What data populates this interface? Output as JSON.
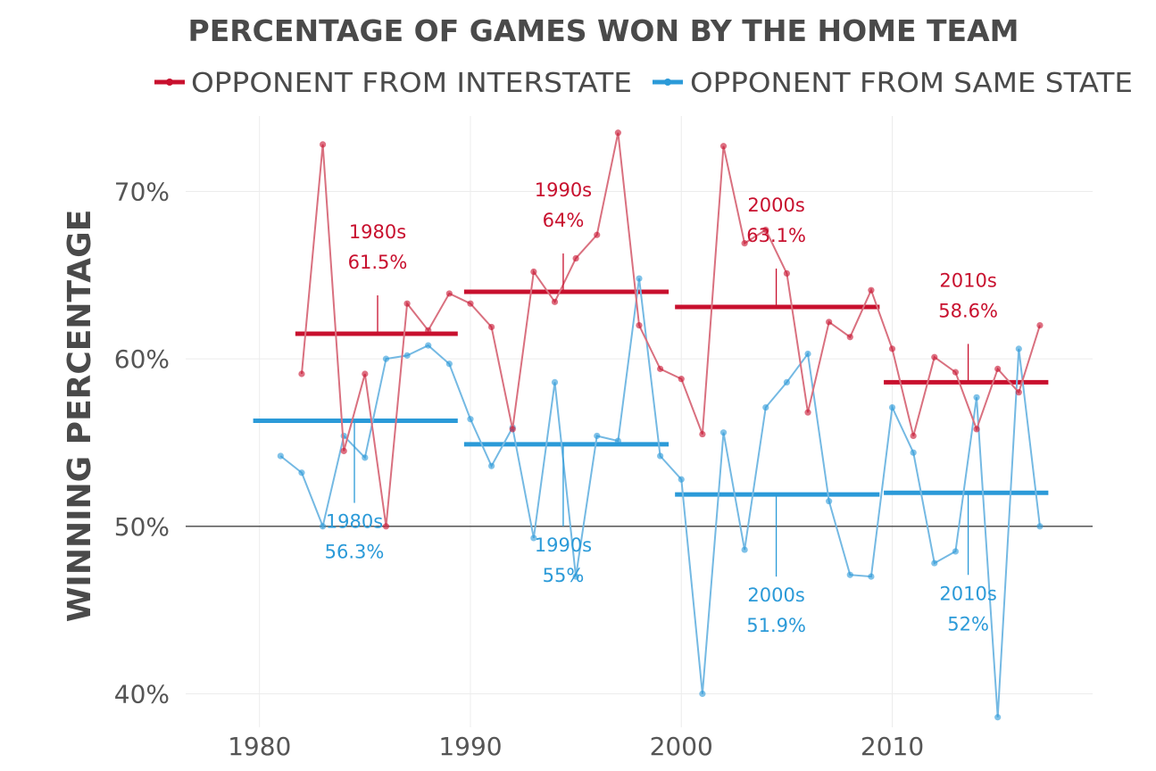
{
  "chart_data": {
    "type": "line",
    "title": "PERCENTAGE OF GAMES WON BY THE HOME TEAM",
    "xlabel": "",
    "ylabel": "WINNING PERCENTAGE",
    "xlim": [
      1976.5,
      2019.5
    ],
    "ylim": [
      38,
      74.5
    ],
    "xticks": [
      1980,
      1990,
      2000,
      2010
    ],
    "xtick_labels": [
      "1980",
      "1990",
      "2000",
      "2010"
    ],
    "yticks": [
      40,
      50,
      60,
      70
    ],
    "ytick_labels": [
      "40%",
      "50%",
      "60%",
      "70%"
    ],
    "grid": true,
    "reference_line": 50,
    "legend_position": "top",
    "series": [
      {
        "name": "OPPONENT FROM INTERSTATE",
        "color": "#c8102e",
        "line_color": "#d9707f",
        "x": [
          1982,
          1983,
          1984,
          1985,
          1986,
          1987,
          1988,
          1989,
          1990,
          1991,
          1992,
          1993,
          1994,
          1995,
          1996,
          1997,
          1998,
          1999,
          2000,
          2001,
          2002,
          2003,
          2004,
          2005,
          2006,
          2007,
          2008,
          2009,
          2010,
          2011,
          2012,
          2013,
          2014,
          2015,
          2016,
          2017
        ],
        "y": [
          59.1,
          72.8,
          54.5,
          59.1,
          50.0,
          63.3,
          61.7,
          63.9,
          63.3,
          61.9,
          55.8,
          65.2,
          63.4,
          66.0,
          67.4,
          73.5,
          62.0,
          59.4,
          58.8,
          55.5,
          72.7,
          66.9,
          67.7,
          65.1,
          56.8,
          62.2,
          61.3,
          64.1,
          60.6,
          55.4,
          60.1,
          59.2,
          55.8,
          59.4,
          58.0,
          62.0
        ],
        "decades": [
          {
            "label": "1980s",
            "value_label": "61.5%",
            "value": 61.5,
            "start": 1981.7,
            "end": 1989.4,
            "anchor": 1985.6
          },
          {
            "label": "1990s",
            "value_label": "64%",
            "value": 64.0,
            "start": 1989.7,
            "end": 1999.4,
            "anchor": 1994.4
          },
          {
            "label": "2000s",
            "value_label": "63.1%",
            "value": 63.1,
            "start": 1999.7,
            "end": 2009.4,
            "anchor": 2004.5
          },
          {
            "label": "2010s",
            "value_label": "58.6%",
            "value": 58.6,
            "start": 2009.6,
            "end": 2017.4,
            "anchor": 2013.6
          }
        ]
      },
      {
        "name": "OPPONENT FROM SAME STATE",
        "color": "#2b9ad8",
        "line_color": "#74b9e3",
        "x": [
          1981,
          1982,
          1983,
          1984,
          1985,
          1986,
          1987,
          1988,
          1989,
          1990,
          1991,
          1992,
          1993,
          1994,
          1995,
          1996,
          1997,
          1998,
          1999,
          2000,
          2001,
          2002,
          2003,
          2004,
          2005,
          2006,
          2007,
          2008,
          2009,
          2010,
          2011,
          2012,
          2013,
          2014,
          2015,
          2016,
          2017
        ],
        "y": [
          54.2,
          53.2,
          50.0,
          55.4,
          54.1,
          60.0,
          60.2,
          60.8,
          59.7,
          56.4,
          53.6,
          55.9,
          49.3,
          58.6,
          47.0,
          55.4,
          55.1,
          64.8,
          54.2,
          52.8,
          40.0,
          55.6,
          48.6,
          57.1,
          58.6,
          60.3,
          51.5,
          47.1,
          47.0,
          57.1,
          54.4,
          47.8,
          48.5,
          57.7,
          38.6,
          60.6,
          50.0
        ],
        "decades": [
          {
            "label": "1980s",
            "value_label": "56.3%",
            "value": 56.3,
            "start": 1979.7,
            "end": 1989.4,
            "anchor": 1984.5
          },
          {
            "label": "1990s",
            "value_label": "55%",
            "value": 54.9,
            "start": 1989.7,
            "end": 1999.4,
            "anchor": 1994.4
          },
          {
            "label": "2000s",
            "value_label": "51.9%",
            "value": 51.9,
            "start": 1999.7,
            "end": 2009.4,
            "anchor": 2004.5
          },
          {
            "label": "2010s",
            "value_label": "52%",
            "value": 52.0,
            "start": 2009.6,
            "end": 2017.4,
            "anchor": 2013.6
          }
        ]
      }
    ]
  }
}
